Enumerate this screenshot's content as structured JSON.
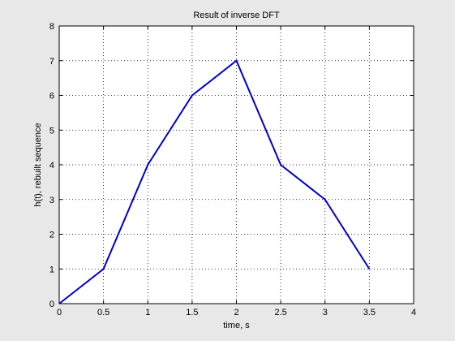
{
  "chart_data": {
    "type": "line",
    "title": "Result of inverse DFT",
    "xlabel": "time, s",
    "ylabel": "h(t), rebuilt sequence",
    "xlim": [
      0,
      4
    ],
    "ylim": [
      0,
      8
    ],
    "x_ticks": [
      0,
      0.5,
      1,
      1.5,
      2,
      2.5,
      3,
      3.5,
      4
    ],
    "y_ticks": [
      0,
      1,
      2,
      3,
      4,
      5,
      6,
      7,
      8
    ],
    "x_tick_labels": [
      "0",
      "0.5",
      "1",
      "1.5",
      "2",
      "2.5",
      "3",
      "3.5",
      "4"
    ],
    "y_tick_labels": [
      "0",
      "1",
      "2",
      "3",
      "4",
      "5",
      "6",
      "7",
      "8"
    ],
    "grid": true,
    "series": [
      {
        "x": [
          0,
          0.5,
          1,
          1.5,
          2,
          2.5,
          3,
          3.5
        ],
        "y": [
          0,
          1,
          4,
          6,
          7,
          4,
          3,
          1
        ],
        "color": "#0000cc"
      }
    ]
  }
}
